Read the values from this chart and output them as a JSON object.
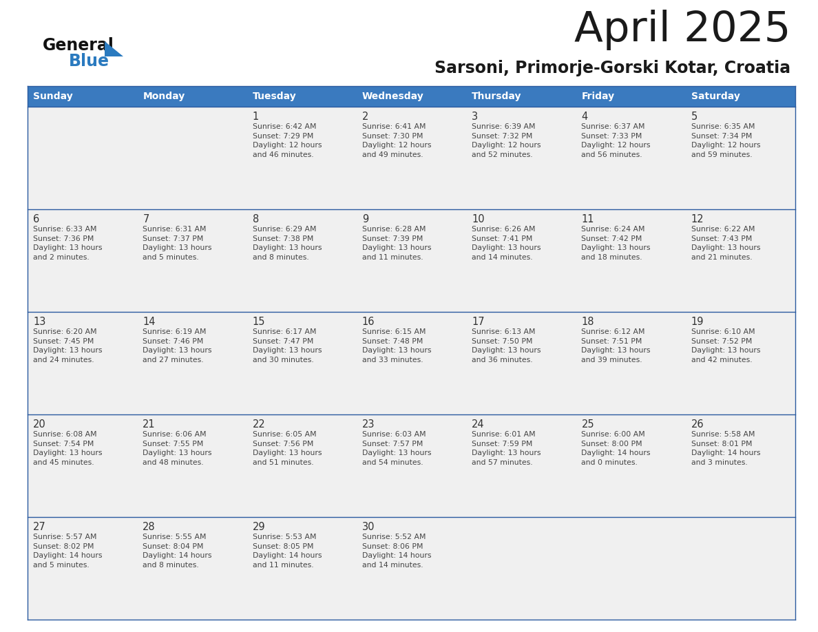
{
  "title": "April 2025",
  "subtitle": "Sarsoni, Primorje-Gorski Kotar, Croatia",
  "days_of_week": [
    "Sunday",
    "Monday",
    "Tuesday",
    "Wednesday",
    "Thursday",
    "Friday",
    "Saturday"
  ],
  "header_bg": "#3a7abf",
  "header_text": "#ffffff",
  "cell_bg_light": "#f0f0f0",
  "border_color": "#2a5a9f",
  "text_color": "#222222",
  "cell_text_color": "#333333",
  "weeks": [
    [
      {
        "day": null,
        "text": null
      },
      {
        "day": null,
        "text": null
      },
      {
        "day": "1",
        "text": "Sunrise: 6:42 AM\nSunset: 7:29 PM\nDaylight: 12 hours\nand 46 minutes."
      },
      {
        "day": "2",
        "text": "Sunrise: 6:41 AM\nSunset: 7:30 PM\nDaylight: 12 hours\nand 49 minutes."
      },
      {
        "day": "3",
        "text": "Sunrise: 6:39 AM\nSunset: 7:32 PM\nDaylight: 12 hours\nand 52 minutes."
      },
      {
        "day": "4",
        "text": "Sunrise: 6:37 AM\nSunset: 7:33 PM\nDaylight: 12 hours\nand 56 minutes."
      },
      {
        "day": "5",
        "text": "Sunrise: 6:35 AM\nSunset: 7:34 PM\nDaylight: 12 hours\nand 59 minutes."
      }
    ],
    [
      {
        "day": "6",
        "text": "Sunrise: 6:33 AM\nSunset: 7:36 PM\nDaylight: 13 hours\nand 2 minutes."
      },
      {
        "day": "7",
        "text": "Sunrise: 6:31 AM\nSunset: 7:37 PM\nDaylight: 13 hours\nand 5 minutes."
      },
      {
        "day": "8",
        "text": "Sunrise: 6:29 AM\nSunset: 7:38 PM\nDaylight: 13 hours\nand 8 minutes."
      },
      {
        "day": "9",
        "text": "Sunrise: 6:28 AM\nSunset: 7:39 PM\nDaylight: 13 hours\nand 11 minutes."
      },
      {
        "day": "10",
        "text": "Sunrise: 6:26 AM\nSunset: 7:41 PM\nDaylight: 13 hours\nand 14 minutes."
      },
      {
        "day": "11",
        "text": "Sunrise: 6:24 AM\nSunset: 7:42 PM\nDaylight: 13 hours\nand 18 minutes."
      },
      {
        "day": "12",
        "text": "Sunrise: 6:22 AM\nSunset: 7:43 PM\nDaylight: 13 hours\nand 21 minutes."
      }
    ],
    [
      {
        "day": "13",
        "text": "Sunrise: 6:20 AM\nSunset: 7:45 PM\nDaylight: 13 hours\nand 24 minutes."
      },
      {
        "day": "14",
        "text": "Sunrise: 6:19 AM\nSunset: 7:46 PM\nDaylight: 13 hours\nand 27 minutes."
      },
      {
        "day": "15",
        "text": "Sunrise: 6:17 AM\nSunset: 7:47 PM\nDaylight: 13 hours\nand 30 minutes."
      },
      {
        "day": "16",
        "text": "Sunrise: 6:15 AM\nSunset: 7:48 PM\nDaylight: 13 hours\nand 33 minutes."
      },
      {
        "day": "17",
        "text": "Sunrise: 6:13 AM\nSunset: 7:50 PM\nDaylight: 13 hours\nand 36 minutes."
      },
      {
        "day": "18",
        "text": "Sunrise: 6:12 AM\nSunset: 7:51 PM\nDaylight: 13 hours\nand 39 minutes."
      },
      {
        "day": "19",
        "text": "Sunrise: 6:10 AM\nSunset: 7:52 PM\nDaylight: 13 hours\nand 42 minutes."
      }
    ],
    [
      {
        "day": "20",
        "text": "Sunrise: 6:08 AM\nSunset: 7:54 PM\nDaylight: 13 hours\nand 45 minutes."
      },
      {
        "day": "21",
        "text": "Sunrise: 6:06 AM\nSunset: 7:55 PM\nDaylight: 13 hours\nand 48 minutes."
      },
      {
        "day": "22",
        "text": "Sunrise: 6:05 AM\nSunset: 7:56 PM\nDaylight: 13 hours\nand 51 minutes."
      },
      {
        "day": "23",
        "text": "Sunrise: 6:03 AM\nSunset: 7:57 PM\nDaylight: 13 hours\nand 54 minutes."
      },
      {
        "day": "24",
        "text": "Sunrise: 6:01 AM\nSunset: 7:59 PM\nDaylight: 13 hours\nand 57 minutes."
      },
      {
        "day": "25",
        "text": "Sunrise: 6:00 AM\nSunset: 8:00 PM\nDaylight: 14 hours\nand 0 minutes."
      },
      {
        "day": "26",
        "text": "Sunrise: 5:58 AM\nSunset: 8:01 PM\nDaylight: 14 hours\nand 3 minutes."
      }
    ],
    [
      {
        "day": "27",
        "text": "Sunrise: 5:57 AM\nSunset: 8:02 PM\nDaylight: 14 hours\nand 5 minutes."
      },
      {
        "day": "28",
        "text": "Sunrise: 5:55 AM\nSunset: 8:04 PM\nDaylight: 14 hours\nand 8 minutes."
      },
      {
        "day": "29",
        "text": "Sunrise: 5:53 AM\nSunset: 8:05 PM\nDaylight: 14 hours\nand 11 minutes."
      },
      {
        "day": "30",
        "text": "Sunrise: 5:52 AM\nSunset: 8:06 PM\nDaylight: 14 hours\nand 14 minutes."
      },
      {
        "day": null,
        "text": null
      },
      {
        "day": null,
        "text": null
      },
      {
        "day": null,
        "text": null
      }
    ]
  ]
}
